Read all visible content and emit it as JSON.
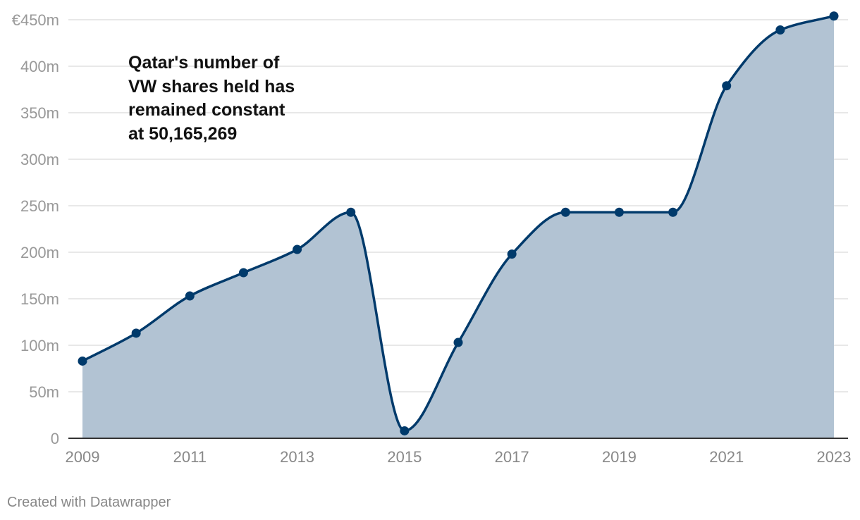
{
  "chart_data": {
    "type": "area",
    "x": [
      2009,
      2010,
      2011,
      2012,
      2013,
      2014,
      2015,
      2016,
      2017,
      2018,
      2019,
      2020,
      2021,
      2022,
      2023
    ],
    "values": [
      83,
      113,
      153,
      178,
      203,
      243,
      8,
      103,
      198,
      243,
      243,
      243,
      379,
      439,
      454
    ],
    "ylim": [
      0,
      450
    ],
    "y_ticks": [
      {
        "value": 450,
        "label": "€450m"
      },
      {
        "value": 400,
        "label": "400m"
      },
      {
        "value": 350,
        "label": "350m"
      },
      {
        "value": 300,
        "label": "300m"
      },
      {
        "value": 250,
        "label": "250m"
      },
      {
        "value": 200,
        "label": "200m"
      },
      {
        "value": 150,
        "label": "150m"
      },
      {
        "value": 100,
        "label": "100m"
      },
      {
        "value": 50,
        "label": "50m"
      },
      {
        "value": 0,
        "label": "0"
      }
    ],
    "x_ticks": [
      "2009",
      "2011",
      "2013",
      "2015",
      "2017",
      "2019",
      "2021",
      "2023"
    ],
    "grid": true,
    "colors": {
      "line": "#003a6b",
      "fill": "#b2c3d3",
      "grid": "#e0e0e0",
      "axis": "#333333"
    }
  },
  "annotation": {
    "lines": [
      "Qatar's number of",
      "VW shares held has",
      "remained constant",
      "at 50,165,269"
    ]
  },
  "footer": {
    "credit": "Created with Datawrapper"
  }
}
